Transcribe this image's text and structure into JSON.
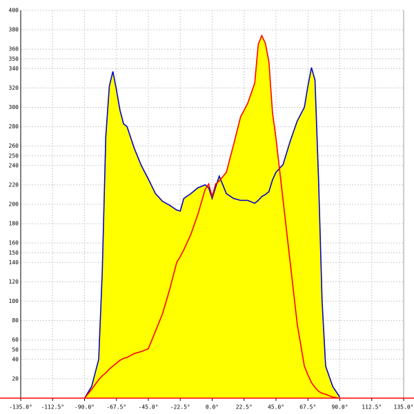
{
  "chart_data": {
    "type": "area",
    "x": [
      -90,
      -85,
      -80,
      -77.5,
      -75,
      -72.5,
      -70,
      -67.5,
      -65,
      -62.5,
      -60,
      -55,
      -50,
      -45,
      -40,
      -35,
      -30,
      -25,
      -22.5,
      -20,
      -15,
      -10,
      -5,
      -2.5,
      0,
      2.5,
      5,
      10,
      15,
      20,
      25,
      30,
      32.5,
      35,
      37.5,
      40,
      42.5,
      45,
      50,
      55,
      60,
      65,
      67.5,
      70,
      72.5,
      75,
      77.5,
      80,
      85,
      90
    ],
    "series": [
      {
        "color": "#0000cc",
        "values": [
          0,
          12,
          40,
          130,
          270,
          322,
          337,
          318,
          297,
          283,
          280,
          258,
          240,
          226,
          211,
          203,
          199,
          194,
          193,
          206,
          211,
          217,
          220,
          217,
          206,
          218,
          229,
          211,
          206,
          204,
          204,
          201,
          204,
          208,
          210,
          213,
          225,
          233,
          241,
          265,
          286,
          300,
          322,
          341,
          328,
          226,
          100,
          33,
          12,
          1
        ]
      },
      {
        "color": "#ff0000",
        "values": [
          0,
          9,
          19,
          23,
          26,
          30,
          33,
          36,
          39,
          41,
          42,
          46,
          48,
          51,
          69,
          87,
          112,
          140,
          146,
          153,
          169,
          190,
          215,
          221,
          208,
          221,
          224,
          233,
          261,
          290,
          304,
          325,
          365,
          374,
          366,
          347,
          295,
          268,
          204,
          140,
          76,
          33,
          24,
          16,
          11,
          7,
          5,
          4,
          1,
          0
        ]
      }
    ],
    "fill_color": "#ffff00",
    "xlim": [
      -135,
      135
    ],
    "xticks": [
      {
        "value": -135,
        "label": "-135.0°"
      },
      {
        "value": -112.5,
        "label": "-112.5°"
      },
      {
        "value": -90,
        "label": "-90.0°"
      },
      {
        "value": -67.5,
        "label": "-67.5°"
      },
      {
        "value": -45,
        "label": "-45.0°"
      },
      {
        "value": -22.5,
        "label": "-22.5°"
      },
      {
        "value": 0,
        "label": "0.0°"
      },
      {
        "value": 22.5,
        "label": "22.5°"
      },
      {
        "value": 45,
        "label": "45.0°"
      },
      {
        "value": 67.5,
        "label": "67.5°"
      },
      {
        "value": 90,
        "label": "90.0°"
      },
      {
        "value": 112.5,
        "label": "112.5°"
      },
      {
        "value": 135,
        "label": "135.0°"
      }
    ],
    "ylim": [
      0,
      400
    ],
    "yticks": [
      20,
      40,
      50,
      60,
      80,
      100,
      120,
      140,
      150,
      160,
      180,
      200,
      220,
      240,
      250,
      260,
      280,
      300,
      320,
      340,
      350,
      360,
      380,
      400
    ],
    "grid": true
  }
}
